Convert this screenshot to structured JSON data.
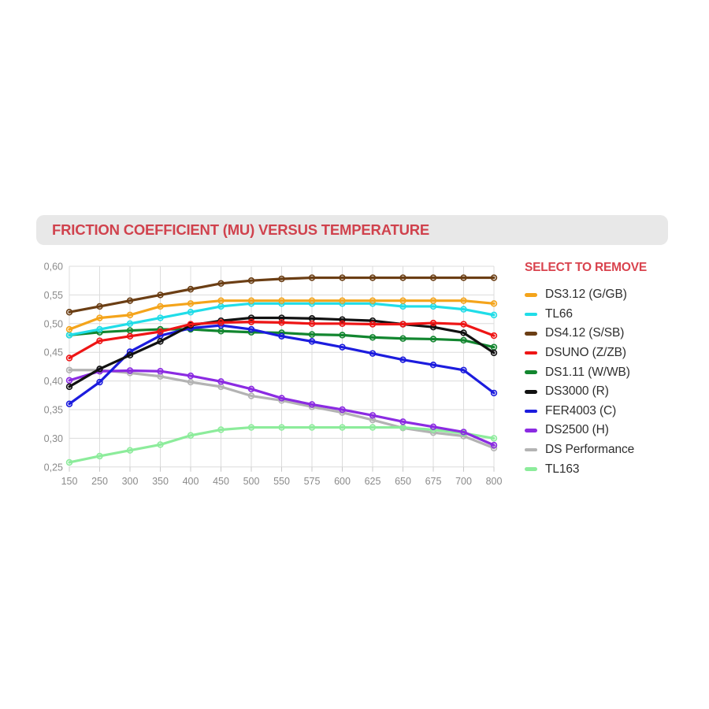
{
  "header": {
    "title": "FRICTION COEFFICIENT (MU) VERSUS TEMPERATURE"
  },
  "legend": {
    "heading": "SELECT TO REMOVE",
    "heading_color": "#d9434e"
  },
  "colors": {
    "title_bar_bg": "#e8e8e8",
    "title_text": "#d0424d",
    "grid_line": "#dcdcdc",
    "tick_mark": "#c9c9c9",
    "axis_label": "#8a8a8a",
    "legend_text": "#2e2e2e"
  },
  "chart_data": {
    "type": "line",
    "title": "FRICTION COEFFICIENT (MU) VERSUS TEMPERATURE",
    "xlabel": "",
    "ylabel": "",
    "grid": true,
    "legend_position": "right",
    "categories": [
      "150",
      "250",
      "300",
      "350",
      "400",
      "450",
      "500",
      "550",
      "575",
      "600",
      "625",
      "650",
      "675",
      "700",
      "800"
    ],
    "ylim": [
      0.25,
      0.6
    ],
    "ytick_values": [
      0.6,
      0.55,
      0.5,
      0.45,
      0.4,
      0.35,
      0.3,
      0.25
    ],
    "ytick_labels": [
      "0,60",
      "0,55",
      "0,50",
      "0,45",
      "0,40",
      "0,35",
      "0,30",
      "0,25"
    ],
    "series": [
      {
        "name": "DS3.12 (G/GB)",
        "color": "#f4a41b",
        "values": [
          0.49,
          0.51,
          0.515,
          0.53,
          0.535,
          0.54,
          0.54,
          0.54,
          0.54,
          0.54,
          0.54,
          0.54,
          0.54,
          0.54,
          0.535
        ]
      },
      {
        "name": "TL66",
        "color": "#20dde8",
        "values": [
          0.48,
          0.49,
          0.5,
          0.51,
          0.52,
          0.53,
          0.535,
          0.535,
          0.535,
          0.535,
          0.535,
          0.53,
          0.53,
          0.525,
          0.515
        ]
      },
      {
        "name": "DS4.12 (S/SB)",
        "color": "#6b3e14",
        "values": [
          0.52,
          0.53,
          0.54,
          0.55,
          0.56,
          0.57,
          0.575,
          0.578,
          0.58,
          0.58,
          0.58,
          0.58,
          0.58,
          0.58,
          0.58
        ]
      },
      {
        "name": "DSUNO (Z/ZB)",
        "color": "#ee1515",
        "values": [
          0.44,
          0.47,
          0.478,
          0.486,
          0.499,
          0.502,
          0.503,
          0.502,
          0.5,
          0.5,
          0.499,
          0.499,
          0.501,
          0.499,
          0.479
        ]
      },
      {
        "name": "DS1.11 (W/WB)",
        "color": "#12862f",
        "values": [
          0.48,
          0.485,
          0.488,
          0.49,
          0.49,
          0.487,
          0.485,
          0.484,
          0.481,
          0.48,
          0.476,
          0.474,
          0.473,
          0.471,
          0.459
        ]
      },
      {
        "name": "DS3000 (R)",
        "color": "#111111",
        "values": [
          0.39,
          0.421,
          0.445,
          0.469,
          0.497,
          0.505,
          0.51,
          0.51,
          0.509,
          0.507,
          0.505,
          0.499,
          0.494,
          0.484,
          0.449
        ]
      },
      {
        "name": "FER4003 (C)",
        "color": "#1c1cde",
        "values": [
          0.36,
          0.398,
          0.451,
          0.479,
          0.492,
          0.497,
          0.49,
          0.478,
          0.469,
          0.459,
          0.448,
          0.437,
          0.428,
          0.419,
          0.379
        ]
      },
      {
        "name": "DS2500 (H)",
        "color": "#8b2be2",
        "values": [
          0.401,
          0.417,
          0.418,
          0.417,
          0.409,
          0.399,
          0.386,
          0.37,
          0.359,
          0.35,
          0.34,
          0.329,
          0.32,
          0.311,
          0.288
        ]
      },
      {
        "name": "DS Performance",
        "color": "#b3b3b3",
        "values": [
          0.419,
          0.419,
          0.414,
          0.408,
          0.398,
          0.39,
          0.374,
          0.366,
          0.355,
          0.345,
          0.332,
          0.318,
          0.31,
          0.304,
          0.283
        ]
      },
      {
        "name": "TL163",
        "color": "#8cec9b",
        "values": [
          0.258,
          0.269,
          0.279,
          0.289,
          0.305,
          0.315,
          0.319,
          0.319,
          0.319,
          0.319,
          0.319,
          0.319,
          0.315,
          0.309,
          0.3
        ]
      }
    ],
    "draw_order": [
      8,
      9,
      7,
      4,
      6,
      5,
      3,
      2,
      1,
      0
    ]
  }
}
